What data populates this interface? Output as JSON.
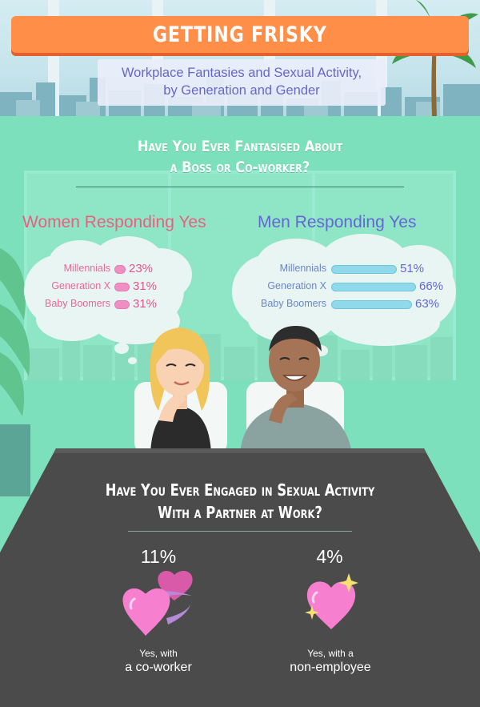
{
  "header": {
    "title": "GETTING FRISKY",
    "subtitle_line1": "Workplace Fantasies and Sexual Activity,",
    "subtitle_line2": "by Generation and Gender"
  },
  "question1": {
    "line1": "Have You Ever Fantasised About",
    "line2": "a Boss or Co-worker?"
  },
  "question2": {
    "line1": "Have You Ever Engaged in Sexual Activity",
    "line2": "With a Partner at Work?"
  },
  "colors": {
    "women": "#e8607f",
    "men": "#6466d4",
    "women_bar": "#f08fc4",
    "men_bar": "#8fd9ea",
    "banner": "#ff8e48",
    "room": "#7de0bd",
    "table": "#4a4a4a"
  },
  "chart_data": [
    {
      "type": "bar",
      "title": "Women Responding Yes",
      "categories": [
        "Millennials",
        "Generation X",
        "Baby Boomers"
      ],
      "values": [
        23,
        31,
        31
      ],
      "value_labels": [
        "23%",
        "31%",
        "31%"
      ],
      "unit": "%"
    },
    {
      "type": "bar",
      "title": "Men Responding Yes",
      "categories": [
        "Millennials",
        "Generation X",
        "Baby Boomers"
      ],
      "values": [
        51,
        66,
        63
      ],
      "value_labels": [
        "51%",
        "66%",
        "63%"
      ],
      "unit": "%"
    },
    {
      "type": "table",
      "items": [
        {
          "value": 11,
          "value_label": "11%",
          "caption_line1": "Yes, with",
          "caption_line2": "a co-worker",
          "icon": "two-hearts-icon"
        },
        {
          "value": 4,
          "value_label": "4%",
          "caption_line1": "Yes, with a",
          "caption_line2": "non-employee",
          "icon": "sparkle-heart-icon"
        }
      ]
    }
  ]
}
